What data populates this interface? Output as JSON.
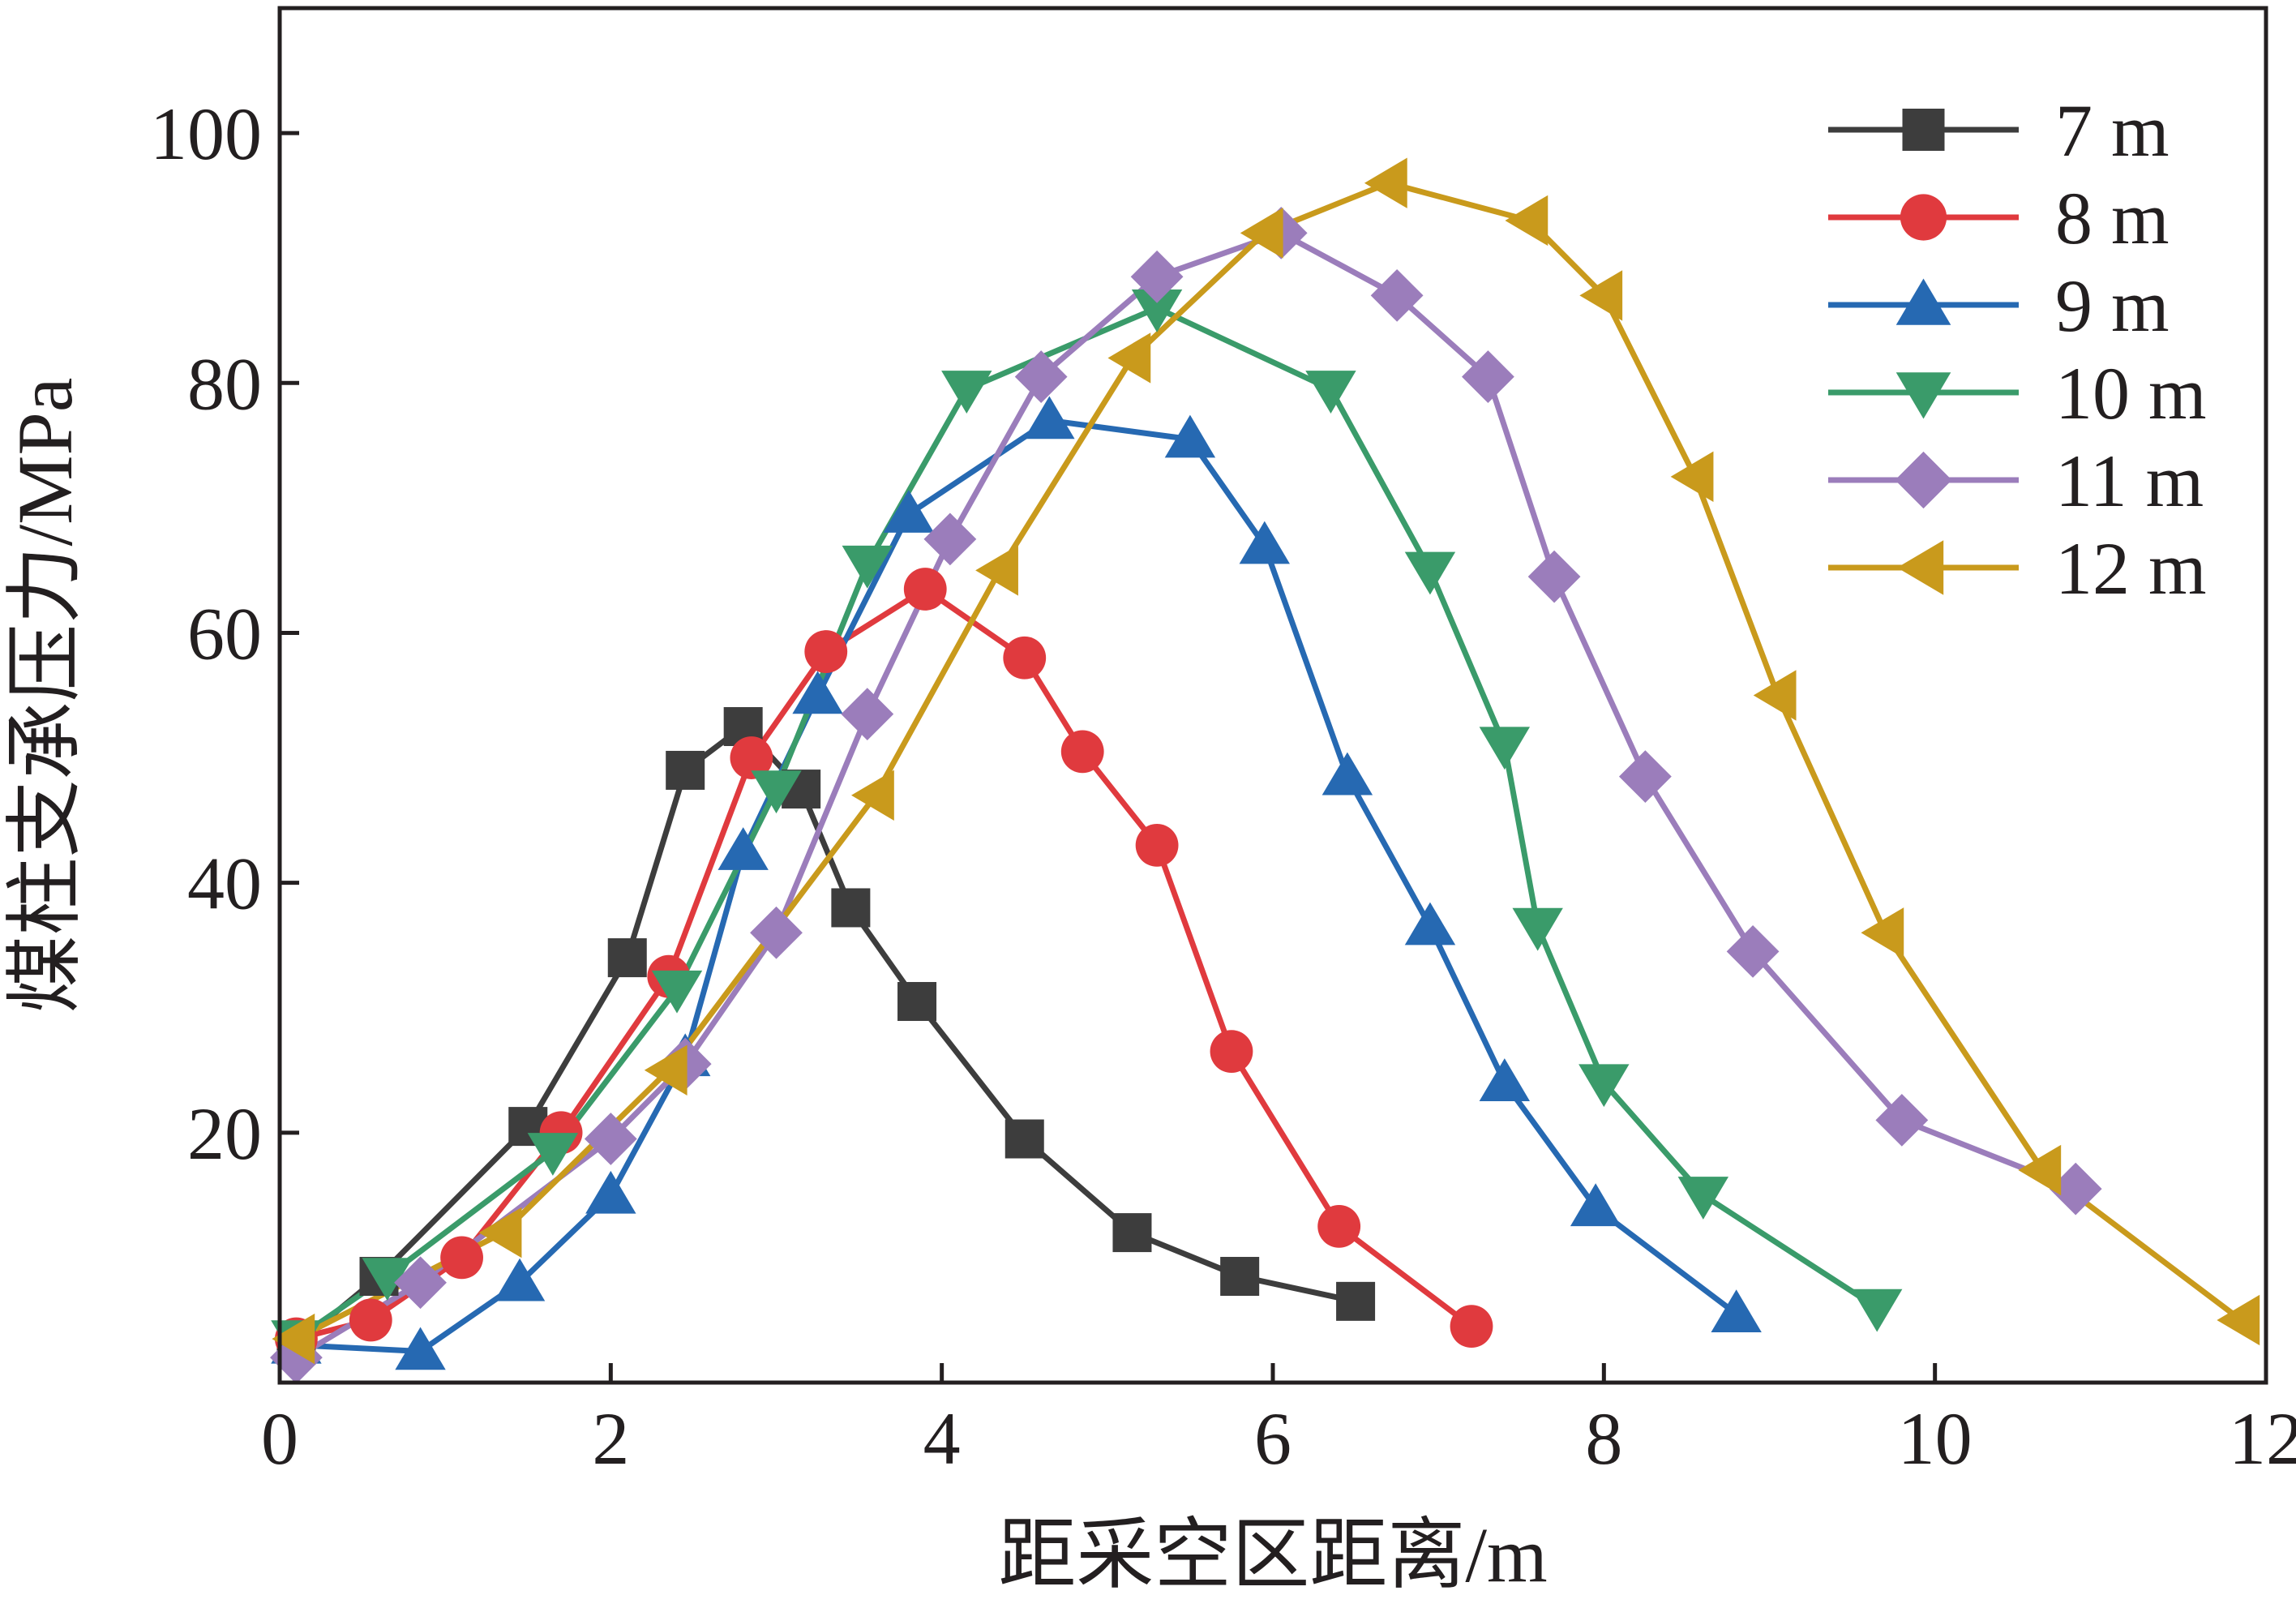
{
  "chart_data": {
    "type": "line",
    "title": "",
    "xlabel": "距采空区距离/m",
    "ylabel": "煤柱支承压力/MPa",
    "xlim": [
      0,
      12
    ],
    "ylim": [
      0,
      110
    ],
    "xticks": [
      0,
      2,
      4,
      6,
      8,
      10,
      12
    ],
    "yticks": [
      20,
      40,
      60,
      80,
      100
    ],
    "xtick_labels": [
      "0",
      "2",
      "4",
      "6",
      "8",
      "10",
      "12"
    ],
    "ytick_labels": [
      "20",
      "40",
      "60",
      "80",
      "100"
    ],
    "grid": false,
    "legend_position": "top-right",
    "series": [
      {
        "name": "7 m",
        "color": "#3d3d3d",
        "marker": "square",
        "x": [
          0.1,
          0.6,
          1.5,
          2.1,
          2.45,
          2.8,
          3.15,
          3.45,
          3.85,
          4.5,
          5.15,
          5.8,
          6.5
        ],
        "y": [
          3,
          8.5,
          20.5,
          34,
          49,
          52.5,
          47.5,
          38,
          30.5,
          19.5,
          12,
          8.5,
          6.5
        ]
      },
      {
        "name": "8 m",
        "color": "#e03a3e",
        "marker": "circle",
        "x": [
          0.1,
          0.55,
          1.1,
          1.7,
          2.35,
          2.85,
          3.3,
          3.9,
          4.5,
          4.85,
          5.3,
          5.75,
          6.4,
          7.2
        ],
        "y": [
          3.5,
          5,
          10,
          20,
          32.5,
          50,
          58.5,
          63.5,
          58,
          50.5,
          43,
          26.5,
          12.5,
          4.5
        ]
      },
      {
        "name": "9 m",
        "color": "#2669b2",
        "marker": "triangle-up",
        "x": [
          0.1,
          0.85,
          1.45,
          2.0,
          2.45,
          2.8,
          3.25,
          3.8,
          4.65,
          5.5,
          5.95,
          6.45,
          6.95,
          7.4,
          7.95,
          8.8
        ],
        "y": [
          3,
          2.5,
          8,
          15,
          26,
          42.5,
          55,
          69.5,
          77,
          75.5,
          67,
          48.5,
          36.5,
          24,
          14,
          5.5
        ]
      },
      {
        "name": "10 m",
        "color": "#3a9b6a",
        "marker": "triangle-down",
        "x": [
          0.1,
          0.65,
          1.65,
          2.4,
          3.0,
          3.55,
          4.15,
          5.3,
          6.35,
          6.95,
          7.4,
          7.6,
          8.0,
          8.6,
          9.65
        ],
        "y": [
          3.5,
          8.5,
          18.5,
          31.5,
          47.5,
          65.5,
          79.5,
          86,
          79.5,
          65,
          51,
          36.5,
          24,
          15,
          6
        ]
      },
      {
        "name": "11 m",
        "color": "#9b7dbb",
        "marker": "diamond",
        "x": [
          0.1,
          0.85,
          2.0,
          2.45,
          3.0,
          3.55,
          4.05,
          4.6,
          5.3,
          6.05,
          6.75,
          7.3,
          7.7,
          8.25,
          8.9,
          9.8,
          10.85
        ],
        "y": [
          2,
          8,
          19.5,
          25.5,
          36,
          53.5,
          67.5,
          80.5,
          88.5,
          92,
          87,
          80.5,
          64.5,
          48.5,
          34.5,
          21,
          15.5
        ]
      },
      {
        "name": "12 m",
        "color": "#c99a1c",
        "marker": "triangle-left",
        "x": [
          0.1,
          1.35,
          2.35,
          3.6,
          4.35,
          5.15,
          5.95,
          6.7,
          7.55,
          8.0,
          8.55,
          9.05,
          9.7,
          10.65,
          11.85
        ],
        "y": [
          3.5,
          12,
          25,
          47,
          65,
          82,
          92,
          96,
          93,
          87,
          72.5,
          55,
          36,
          17,
          5
        ]
      }
    ]
  }
}
